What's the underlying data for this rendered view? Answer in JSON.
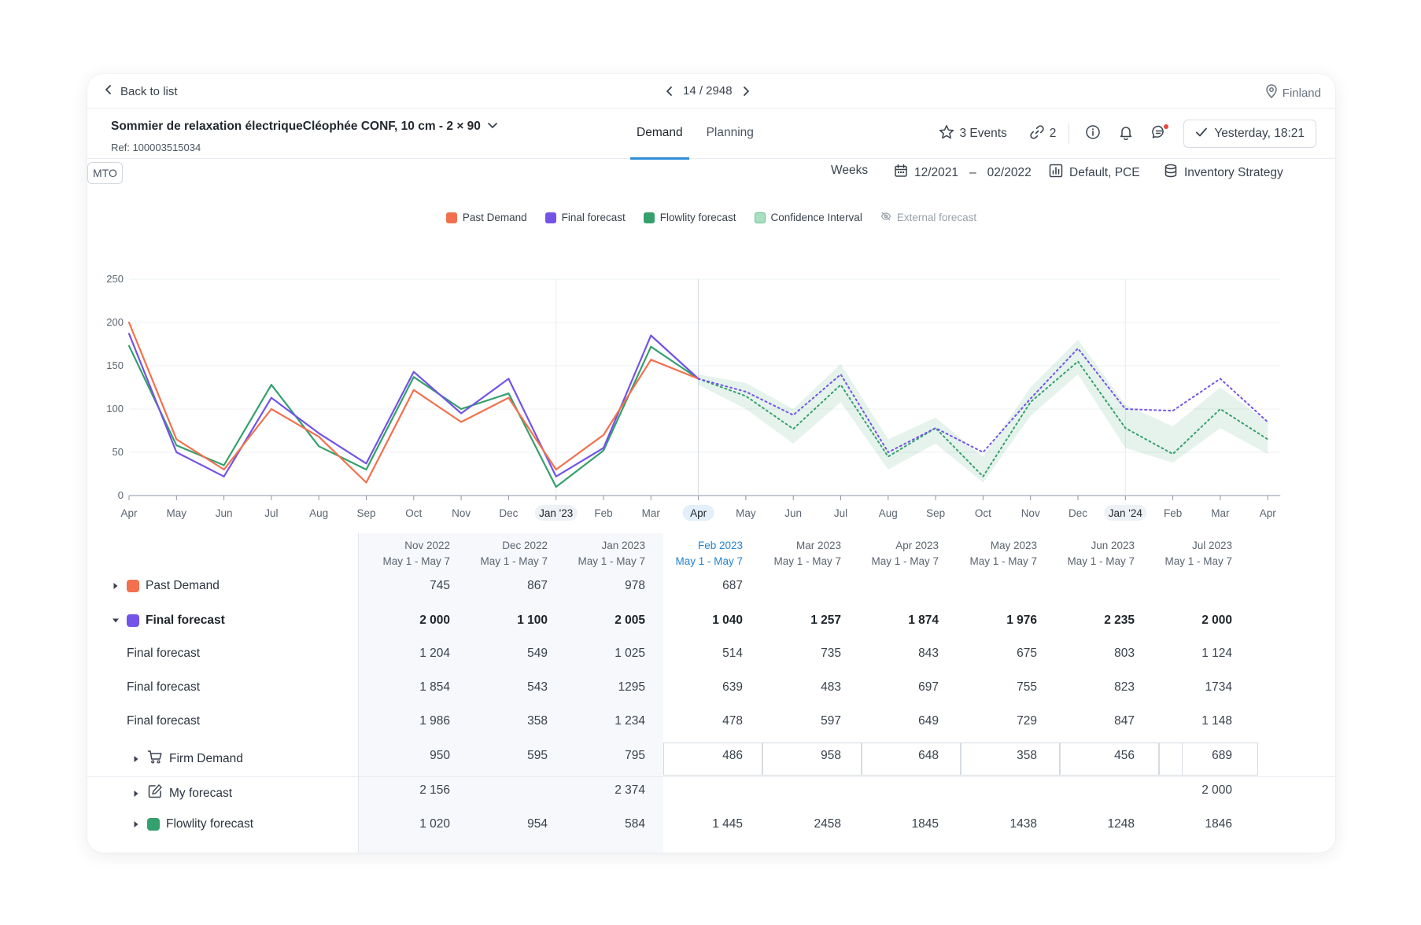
{
  "topbar": {
    "back_label": "Back to list",
    "pager_text": "14 / 2948",
    "location": "Finland"
  },
  "product": {
    "title": "Sommier de relaxation électriqueCléophée CONF, 10 cm - 2 × 90",
    "ref": "Ref: 100003515034"
  },
  "tabs": [
    {
      "label": "Demand",
      "active": true
    },
    {
      "label": "Planning",
      "active": false
    }
  ],
  "header_actions": {
    "events_label": "3 Events",
    "links_count": "2",
    "saved_label": "Yesterday, 18:21"
  },
  "toolbar": {
    "mto_badge": "MTO",
    "granularity": "Weeks",
    "date_start": "12/2021",
    "date_sep": "–",
    "date_end": "02/2022",
    "view_label": "Default, PCE",
    "strategy_label": "Inventory Strategy"
  },
  "colors": {
    "past_demand": "#f2704e",
    "final_forecast": "#7353e8",
    "flowlity_forecast": "#34a06c",
    "confidence": "#a9dfbf",
    "accent": "#2f8dd8"
  },
  "chart_data": {
    "type": "line",
    "legend": [
      {
        "name": "Past Demand",
        "color": "#f2704e"
      },
      {
        "name": "Final forecast",
        "color": "#7353e8"
      },
      {
        "name": "Flowlity forecast",
        "color": "#34a06c"
      },
      {
        "name": "Confidence Interval",
        "color": "#a9dfbf"
      },
      {
        "name": "External forecast",
        "color": "#b9c0ca",
        "disabled": true
      }
    ],
    "x_labels": [
      "Apr",
      "May",
      "Jun",
      "Jul",
      "Aug",
      "Sep",
      "Oct",
      "Nov",
      "Dec",
      "Jan '23",
      "Feb",
      "Mar",
      "Apr",
      "May",
      "Jun",
      "Jul",
      "Aug",
      "Sep",
      "Oct",
      "Nov",
      "Dec",
      "Jan '24",
      "Feb",
      "Mar",
      "Apr"
    ],
    "highlighted_x_labels": [
      "Jan '23",
      "Apr",
      "Jan '24"
    ],
    "ylim": [
      0,
      250
    ],
    "yticks": [
      0,
      50,
      100,
      150,
      200,
      250
    ],
    "grid": true,
    "past_demand": [
      200,
      65,
      30,
      100,
      68,
      15,
      122,
      85,
      113,
      30,
      70,
      157,
      135
    ],
    "final_forecast_history": [
      187,
      50,
      22,
      113,
      72,
      37,
      143,
      95,
      135,
      22,
      55,
      185,
      135
    ],
    "flowlity_forecast_history": [
      173,
      58,
      35,
      128,
      57,
      30,
      137,
      100,
      118,
      10,
      52,
      172,
      135
    ],
    "final_forecast_future": [
      135,
      120,
      93,
      140,
      50,
      78,
      50,
      112,
      170,
      100,
      98,
      135,
      85
    ],
    "flowlity_forecast_future": [
      135,
      115,
      77,
      128,
      45,
      78,
      22,
      108,
      155,
      78,
      48,
      100,
      65
    ],
    "confidence_upper": [
      140,
      130,
      100,
      152,
      65,
      90,
      45,
      125,
      180,
      105,
      80,
      125,
      85
    ],
    "confidence_lower": [
      128,
      100,
      60,
      108,
      30,
      60,
      15,
      92,
      140,
      55,
      38,
      78,
      48
    ]
  },
  "table": {
    "columns": [
      {
        "month": "Nov 2022",
        "range": "May 1 - May 7"
      },
      {
        "month": "Dec 2022",
        "range": "May 1 - May 7"
      },
      {
        "month": "Jan 2023",
        "range": "May 1 - May 7"
      },
      {
        "month": "Feb 2023",
        "range": "May 1 - May 7",
        "current": true
      },
      {
        "month": "Mar 2023",
        "range": "May 1 - May 7"
      },
      {
        "month": "Apr 2023",
        "range": "May 1 - May 7"
      },
      {
        "month": "May 2023",
        "range": "May 1 - May 7"
      },
      {
        "month": "Jun 2023",
        "range": "May 1 - May 7"
      },
      {
        "month": "Jul 2023",
        "range": "May 1 - May 7"
      }
    ],
    "rows": [
      {
        "label": "Past Demand",
        "values": [
          "745",
          "867",
          "978",
          "687",
          "",
          "",
          "",
          "",
          ""
        ]
      },
      {
        "label": "Final forecast",
        "values": [
          "2 000",
          "1 100",
          "2 005",
          "1 040",
          "1 257",
          "1 874",
          "1 976",
          "2 235",
          "2 000"
        ]
      },
      {
        "label": "Final forecast",
        "values": [
          "1 204",
          "549",
          "1 025",
          "514",
          "735",
          "843",
          "675",
          "803",
          "1 124"
        ]
      },
      {
        "label": "Final forecast",
        "values": [
          "1 854",
          "543",
          "1295",
          "639",
          "483",
          "697",
          "755",
          "823",
          "1734"
        ]
      },
      {
        "label": "Final forecast",
        "values": [
          "1 986",
          "358",
          "1 234",
          "478",
          "597",
          "649",
          "729",
          "847",
          "1 148"
        ]
      },
      {
        "label": "Firm Demand",
        "values": [
          "950",
          "595",
          "795",
          "486",
          "958",
          "648",
          "358",
          "456",
          "689"
        ]
      },
      {
        "label": "My forecast",
        "values": [
          "2 156",
          "",
          "2 374",
          "",
          "",
          "",
          "",
          "",
          "2 000"
        ]
      },
      {
        "label": "Flowlity forecast",
        "values": [
          "1 020",
          "954",
          "584",
          "1 445",
          "2458",
          "1845",
          "1438",
          "1248",
          "1846"
        ]
      }
    ]
  }
}
